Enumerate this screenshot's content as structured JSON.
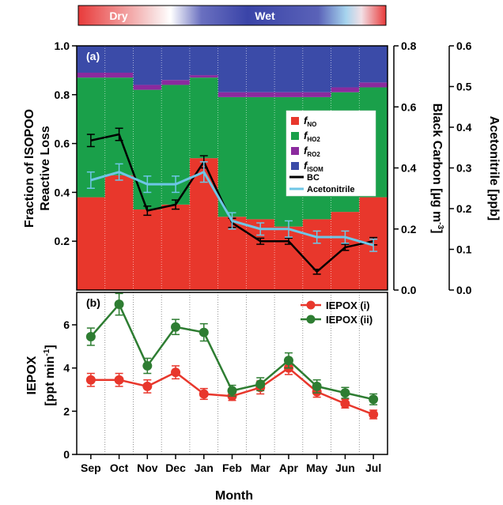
{
  "season_bar": {
    "dry_label": "Dry",
    "wet_label": "Wet"
  },
  "chart_data": [
    {
      "type": "bar",
      "subtype": "stacked-bar-with-line-overlays",
      "panel_label": "(a)",
      "categories": [
        "Sep",
        "Oct",
        "Nov",
        "Dec",
        "Jan",
        "Feb",
        "Mar",
        "Apr",
        "May",
        "Jun",
        "Jul"
      ],
      "ylabel": "Fraction of ISOPOO Reactive Loss",
      "ylim": [
        0,
        1.0
      ],
      "yticks": [
        "0.2",
        "0.4",
        "0.6",
        "0.8",
        "1.0"
      ],
      "y2label": "Black Carbon [µg m-3]",
      "y2lim": [
        0,
        0.8
      ],
      "y2ticks": [
        "0.0",
        "0.2",
        "0.4",
        "0.6",
        "0.8"
      ],
      "y3label": "Acetonitrile [ppb]",
      "y3lim": [
        0,
        0.6
      ],
      "y3ticks": [
        "0.0",
        "0.1",
        "0.2",
        "0.3",
        "0.4",
        "0.5",
        "0.6"
      ],
      "stacks": [
        {
          "name": "fNO",
          "label_main": "f",
          "label_sub": "NO",
          "color": "#e8372c",
          "values": [
            0.38,
            0.47,
            0.33,
            0.35,
            0.54,
            0.3,
            0.29,
            0.26,
            0.29,
            0.32,
            0.38
          ]
        },
        {
          "name": "fHO2",
          "label_main": "f",
          "label_sub": "HO2",
          "color": "#1aa04a",
          "values": [
            0.49,
            0.4,
            0.49,
            0.49,
            0.33,
            0.49,
            0.5,
            0.53,
            0.5,
            0.49,
            0.45
          ]
        },
        {
          "name": "fRO2",
          "label_main": "f",
          "label_sub": "RO2",
          "color": "#8b2a9e",
          "values": [
            0.02,
            0.02,
            0.02,
            0.02,
            0.01,
            0.02,
            0.02,
            0.02,
            0.02,
            0.02,
            0.02
          ]
        },
        {
          "name": "fISOM",
          "label_main": "f",
          "label_sub": "ISOM",
          "color": "#3b4ba8",
          "values": [
            0.11,
            0.11,
            0.16,
            0.14,
            0.12,
            0.19,
            0.19,
            0.19,
            0.19,
            0.17,
            0.15
          ]
        }
      ],
      "lines": [
        {
          "name": "BC",
          "color": "#000000",
          "axis": "y2",
          "values": [
            0.49,
            0.51,
            0.26,
            0.28,
            0.42,
            0.22,
            0.16,
            0.16,
            0.06,
            0.14,
            0.16
          ],
          "errors": [
            0.02,
            0.02,
            0.015,
            0.015,
            0.02,
            0.015,
            0.01,
            0.01,
            0.008,
            0.01,
            0.012
          ]
        },
        {
          "name": "Acetonitrile",
          "color": "#6ec6e6",
          "axis": "y3",
          "values": [
            0.27,
            0.29,
            0.26,
            0.26,
            0.29,
            0.17,
            0.15,
            0.15,
            0.13,
            0.13,
            0.11
          ],
          "errors": [
            0.02,
            0.02,
            0.02,
            0.02,
            0.025,
            0.02,
            0.015,
            0.02,
            0.015,
            0.015,
            0.015
          ]
        }
      ],
      "legend_placement": "center-right",
      "grid": false
    },
    {
      "type": "line",
      "panel_label": "(b)",
      "categories": [
        "Sep",
        "Oct",
        "Nov",
        "Dec",
        "Jan",
        "Feb",
        "Mar",
        "Apr",
        "May",
        "Jun",
        "Jul"
      ],
      "xlabel": "Month",
      "ylabel": "IEPOX [ppt min-1]",
      "ylim": [
        0,
        7.5
      ],
      "yticks": [
        "0",
        "2",
        "4",
        "6"
      ],
      "series": [
        {
          "name": "IEPOX (i)",
          "color": "#e8372c",
          "values": [
            3.45,
            3.45,
            3.15,
            3.8,
            2.8,
            2.7,
            3.1,
            4.0,
            2.9,
            2.35,
            1.85
          ],
          "errors": [
            0.3,
            0.3,
            0.3,
            0.3,
            0.25,
            0.2,
            0.3,
            0.3,
            0.25,
            0.2,
            0.2
          ]
        },
        {
          "name": "IEPOX (ii)",
          "color": "#2e7d32",
          "values": [
            5.45,
            6.95,
            4.1,
            5.9,
            5.65,
            2.95,
            3.25,
            4.35,
            3.15,
            2.85,
            2.55
          ],
          "errors": [
            0.4,
            0.5,
            0.35,
            0.35,
            0.4,
            0.25,
            0.3,
            0.35,
            0.3,
            0.25,
            0.25
          ]
        }
      ],
      "legend_placement": "top-right",
      "grid": "vertical-dotted"
    }
  ]
}
